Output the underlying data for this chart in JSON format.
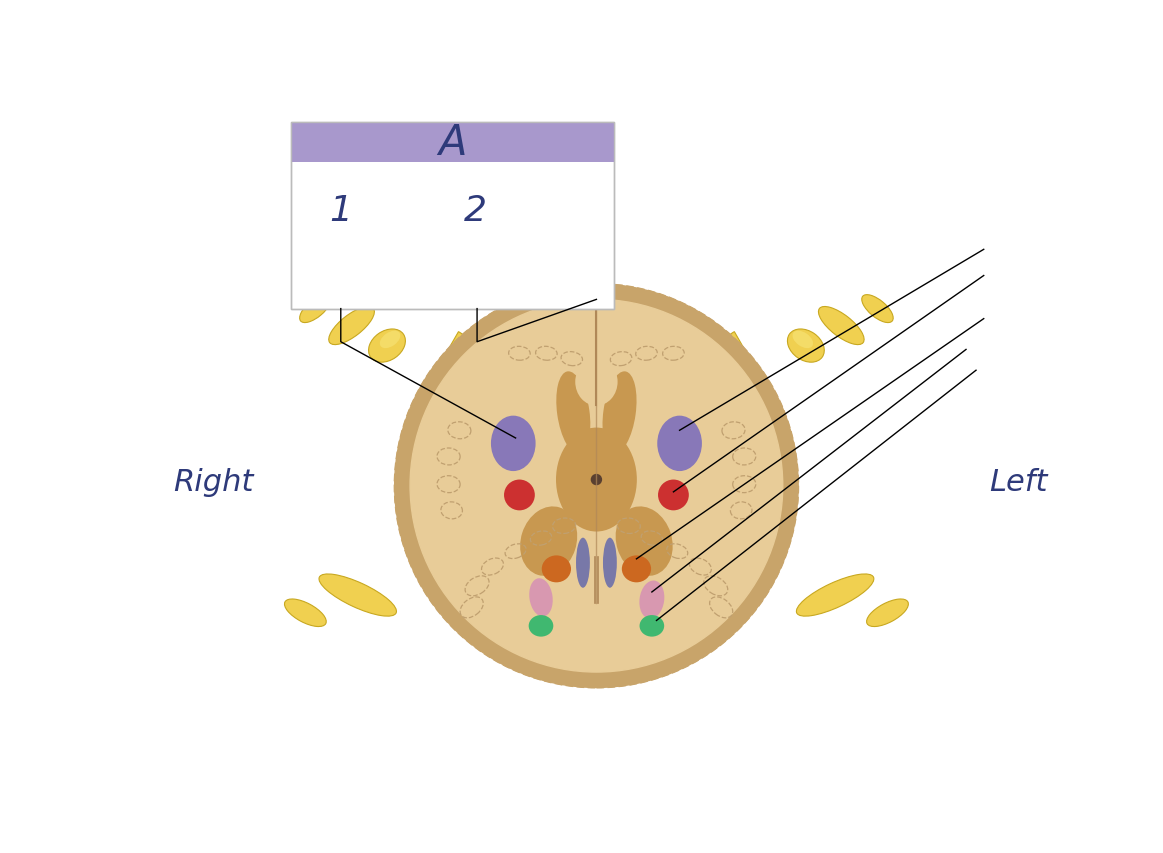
{
  "bg_color": "#ffffff",
  "label_color": "#2e3a7a",
  "header_bg": "#a898cc",
  "box_border": "#bbbbbb",
  "title_label": "A",
  "label_1": "1",
  "label_2": "2",
  "label_right": "Right",
  "label_left": "Left",
  "spinal_outer_color": "#c8a46a",
  "white_matter_color": "#e8cc98",
  "gray_matter_color": "#c89850",
  "nerve_color": "#f0d050",
  "nerve_highlight": "#f8e880",
  "nerve_shadow": "#c8a820",
  "purple_region": "#8878b8",
  "red_region": "#cc3030",
  "orange_region": "#cc6820",
  "pink_region": "#d898b0",
  "green_region": "#40b870",
  "center_purple": "#7878a8",
  "dashed_color": "#c0a070",
  "line_color": "#000000",
  "midline_color": "#b08858"
}
